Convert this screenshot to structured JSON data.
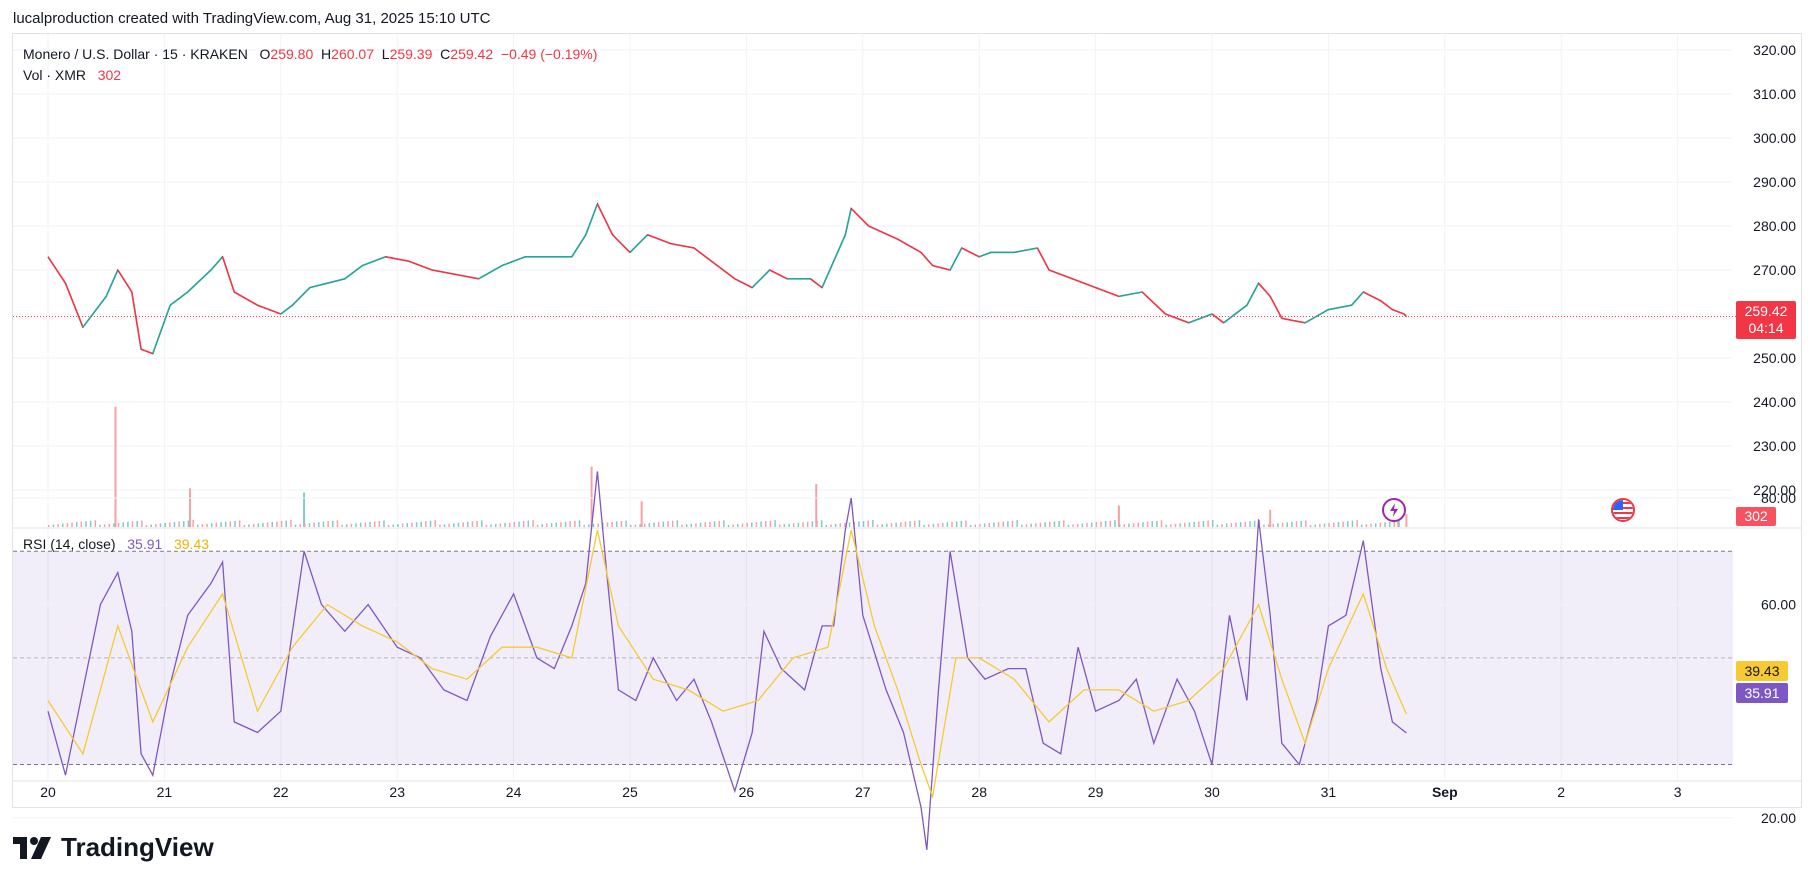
{
  "header": {
    "credit": "lucalproduction created with TradingView.com, Aug 31, 2025 15:10 UTC"
  },
  "legend": {
    "symbol": "Monero / U.S. Dollar · 15 · KRAKEN",
    "o_label": "O",
    "o_value": "259.80",
    "h_label": "H",
    "h_value": "260.07",
    "l_label": "L",
    "l_value": "259.39",
    "c_label": "C",
    "c_value": "259.42",
    "change": "−0.49 (−0.19%)",
    "vol_label": "Vol · XMR",
    "vol_value": "302"
  },
  "rsi_legend": {
    "label": "RSI (14, close)",
    "rsi_value": "35.91",
    "ma_value": "39.43"
  },
  "price_tag": {
    "price": "259.42",
    "countdown": "04:14"
  },
  "volume_tag": "302",
  "rsi_tags": {
    "ma": "39.43",
    "rsi": "35.91"
  },
  "logo": {
    "text": "TradingView"
  },
  "icons": {
    "dividend": "lightning-icon",
    "economic": "us-flag-icon"
  },
  "colors": {
    "up": "#26a69a",
    "down": "#f23645",
    "rsi": "#7e57c2",
    "rsi_ma": "#f7c933",
    "price_line": "#f23645"
  },
  "chart_data": [
    {
      "type": "line",
      "name": "price",
      "x_ticks": [
        "20",
        "21",
        "22",
        "23",
        "24",
        "25",
        "26",
        "27",
        "28",
        "29",
        "30",
        "31",
        "Sep",
        "2",
        "3"
      ],
      "y_ticks": [
        "320.00",
        "310.00",
        "300.00",
        "290.00",
        "280.00",
        "270.00",
        "260.00",
        "250.00",
        "240.00",
        "230.00",
        "220.00"
      ],
      "ylim": [
        212,
        323
      ],
      "last_price": 259.42,
      "points": [
        [
          0,
          273
        ],
        [
          0.15,
          267
        ],
        [
          0.3,
          257
        ],
        [
          0.5,
          264
        ],
        [
          0.6,
          270
        ],
        [
          0.72,
          265
        ],
        [
          0.8,
          252
        ],
        [
          0.9,
          251
        ],
        [
          1.05,
          262
        ],
        [
          1.2,
          265
        ],
        [
          1.4,
          270
        ],
        [
          1.5,
          273
        ],
        [
          1.6,
          265
        ],
        [
          1.8,
          262
        ],
        [
          2.0,
          260
        ],
        [
          2.1,
          262
        ],
        [
          2.25,
          266
        ],
        [
          2.4,
          267
        ],
        [
          2.55,
          268
        ],
        [
          2.7,
          271
        ],
        [
          2.9,
          273
        ],
        [
          3.1,
          272
        ],
        [
          3.3,
          270
        ],
        [
          3.5,
          269
        ],
        [
          3.7,
          268
        ],
        [
          3.9,
          271
        ],
        [
          4.1,
          273
        ],
        [
          4.3,
          273
        ],
        [
          4.5,
          273
        ],
        [
          4.62,
          278
        ],
        [
          4.72,
          285
        ],
        [
          4.85,
          278
        ],
        [
          5.0,
          274
        ],
        [
          5.15,
          278
        ],
        [
          5.35,
          276
        ],
        [
          5.55,
          275
        ],
        [
          5.75,
          271
        ],
        [
          5.9,
          268
        ],
        [
          6.05,
          266
        ],
        [
          6.2,
          270
        ],
        [
          6.35,
          268
        ],
        [
          6.55,
          268
        ],
        [
          6.65,
          266
        ],
        [
          6.75,
          272
        ],
        [
          6.85,
          278
        ],
        [
          6.9,
          284
        ],
        [
          7.05,
          280
        ],
        [
          7.3,
          277
        ],
        [
          7.5,
          274
        ],
        [
          7.6,
          271
        ],
        [
          7.75,
          270
        ],
        [
          7.85,
          275
        ],
        [
          8.0,
          273
        ],
        [
          8.1,
          274
        ],
        [
          8.3,
          274
        ],
        [
          8.5,
          275
        ],
        [
          8.6,
          270
        ],
        [
          8.8,
          268
        ],
        [
          9.0,
          266
        ],
        [
          9.2,
          264
        ],
        [
          9.4,
          265
        ],
        [
          9.6,
          260
        ],
        [
          9.8,
          258
        ],
        [
          10.0,
          260
        ],
        [
          10.1,
          258
        ],
        [
          10.3,
          262
        ],
        [
          10.4,
          267
        ],
        [
          10.5,
          264
        ],
        [
          10.6,
          259
        ],
        [
          10.8,
          258
        ],
        [
          11.0,
          261
        ],
        [
          11.2,
          262
        ],
        [
          11.3,
          265
        ],
        [
          11.45,
          263
        ],
        [
          11.55,
          261
        ],
        [
          11.65,
          260
        ],
        [
          11.67,
          259.42
        ]
      ]
    },
    {
      "type": "bar",
      "name": "volume",
      "points": [
        [
          0.58,
          28
        ],
        [
          1.22,
          9
        ],
        [
          2.2,
          8
        ],
        [
          4.67,
          14
        ],
        [
          5.1,
          6
        ],
        [
          6.6,
          10
        ],
        [
          9.2,
          5
        ],
        [
          10.5,
          4
        ],
        [
          11.6,
          2
        ],
        [
          11.67,
          3
        ]
      ]
    },
    {
      "type": "line",
      "name": "RSI",
      "ylim": [
        8,
        90
      ],
      "y_ticks": [
        "80.00",
        "60.00",
        "20.00"
      ],
      "bands": [
        30,
        50,
        70
      ],
      "rsi": [
        [
          0,
          40
        ],
        [
          0.15,
          28
        ],
        [
          0.3,
          44
        ],
        [
          0.45,
          60
        ],
        [
          0.6,
          66
        ],
        [
          0.72,
          55
        ],
        [
          0.8,
          32
        ],
        [
          0.9,
          28
        ],
        [
          1.05,
          45
        ],
        [
          1.2,
          58
        ],
        [
          1.4,
          64
        ],
        [
          1.5,
          68
        ],
        [
          1.6,
          38
        ],
        [
          1.8,
          36
        ],
        [
          2.0,
          40
        ],
        [
          2.2,
          70
        ],
        [
          2.35,
          60
        ],
        [
          2.55,
          55
        ],
        [
          2.75,
          60
        ],
        [
          3.0,
          52
        ],
        [
          3.2,
          50
        ],
        [
          3.4,
          44
        ],
        [
          3.6,
          42
        ],
        [
          3.8,
          54
        ],
        [
          4.0,
          62
        ],
        [
          4.2,
          50
        ],
        [
          4.35,
          48
        ],
        [
          4.5,
          56
        ],
        [
          4.62,
          64
        ],
        [
          4.72,
          85
        ],
        [
          4.8,
          66
        ],
        [
          4.9,
          44
        ],
        [
          5.05,
          42
        ],
        [
          5.2,
          50
        ],
        [
          5.4,
          42
        ],
        [
          5.55,
          46
        ],
        [
          5.7,
          38
        ],
        [
          5.9,
          25
        ],
        [
          6.05,
          36
        ],
        [
          6.15,
          55
        ],
        [
          6.3,
          48
        ],
        [
          6.5,
          44
        ],
        [
          6.65,
          56
        ],
        [
          6.75,
          56
        ],
        [
          6.85,
          74
        ],
        [
          6.9,
          80
        ],
        [
          7.0,
          58
        ],
        [
          7.2,
          44
        ],
        [
          7.35,
          36
        ],
        [
          7.5,
          22
        ],
        [
          7.55,
          14
        ],
        [
          7.65,
          44
        ],
        [
          7.75,
          70
        ],
        [
          7.9,
          50
        ],
        [
          8.05,
          46
        ],
        [
          8.25,
          48
        ],
        [
          8.4,
          48
        ],
        [
          8.55,
          34
        ],
        [
          8.7,
          32
        ],
        [
          8.85,
          52
        ],
        [
          9.0,
          40
        ],
        [
          9.2,
          42
        ],
        [
          9.35,
          46
        ],
        [
          9.5,
          34
        ],
        [
          9.7,
          46
        ],
        [
          9.85,
          40
        ],
        [
          10.0,
          30
        ],
        [
          10.15,
          58
        ],
        [
          10.3,
          42
        ],
        [
          10.4,
          76
        ],
        [
          10.5,
          58
        ],
        [
          10.6,
          34
        ],
        [
          10.75,
          30
        ],
        [
          10.9,
          42
        ],
        [
          11.0,
          56
        ],
        [
          11.15,
          58
        ],
        [
          11.3,
          72
        ],
        [
          11.45,
          48
        ],
        [
          11.55,
          38
        ],
        [
          11.67,
          35.91
        ]
      ],
      "rsi_ma": [
        [
          0,
          42
        ],
        [
          0.3,
          32
        ],
        [
          0.6,
          56
        ],
        [
          0.9,
          38
        ],
        [
          1.2,
          52
        ],
        [
          1.5,
          62
        ],
        [
          1.8,
          40
        ],
        [
          2.1,
          52
        ],
        [
          2.4,
          60
        ],
        [
          2.7,
          56
        ],
        [
          3.0,
          53
        ],
        [
          3.3,
          48
        ],
        [
          3.6,
          46
        ],
        [
          3.9,
          52
        ],
        [
          4.2,
          52
        ],
        [
          4.5,
          50
        ],
        [
          4.72,
          74
        ],
        [
          4.9,
          56
        ],
        [
          5.2,
          46
        ],
        [
          5.5,
          44
        ],
        [
          5.8,
          40
        ],
        [
          6.1,
          42
        ],
        [
          6.4,
          50
        ],
        [
          6.7,
          52
        ],
        [
          6.9,
          74
        ],
        [
          7.1,
          56
        ],
        [
          7.3,
          44
        ],
        [
          7.5,
          30
        ],
        [
          7.6,
          24
        ],
        [
          7.8,
          50
        ],
        [
          8.0,
          50
        ],
        [
          8.3,
          46
        ],
        [
          8.6,
          38
        ],
        [
          8.9,
          44
        ],
        [
          9.2,
          44
        ],
        [
          9.5,
          40
        ],
        [
          9.8,
          42
        ],
        [
          10.1,
          48
        ],
        [
          10.4,
          60
        ],
        [
          10.6,
          46
        ],
        [
          10.8,
          34
        ],
        [
          11.0,
          48
        ],
        [
          11.3,
          62
        ],
        [
          11.5,
          48
        ],
        [
          11.67,
          39.43
        ]
      ]
    }
  ]
}
